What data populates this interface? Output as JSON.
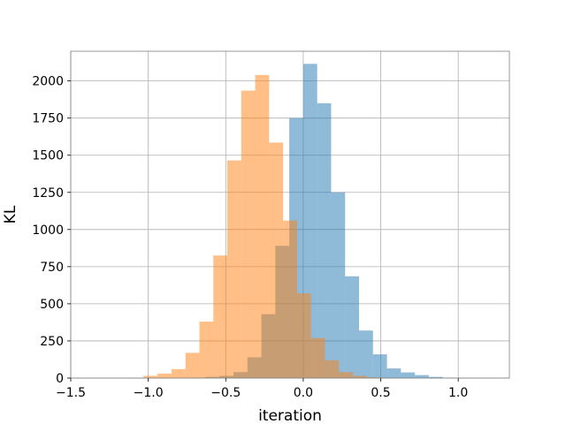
{
  "chart_data": {
    "type": "histogram",
    "xlabel": "iteration",
    "ylabel": "KL",
    "xlim": [
      -1.5,
      1.33
    ],
    "ylim": [
      0,
      2200
    ],
    "x_ticks": [
      -1.5,
      -1.0,
      -0.5,
      0.0,
      0.5,
      1.0
    ],
    "x_tick_labels": [
      "−1.5",
      "−1.0",
      "−0.5",
      "0.0",
      "0.5",
      "1.0"
    ],
    "y_ticks": [
      0,
      250,
      500,
      750,
      1000,
      1250,
      1500,
      1750,
      2000
    ],
    "y_tick_labels": [
      "0",
      "250",
      "500",
      "750",
      "1000",
      "1250",
      "1500",
      "1750",
      "2000"
    ],
    "grid": true,
    "series": [
      {
        "color": "#1f77b4",
        "opacity": 0.5,
        "bins": [
          {
            "x0": -0.72,
            "x1": -0.63,
            "value": 3
          },
          {
            "x0": -0.63,
            "x1": -0.54,
            "value": 8
          },
          {
            "x0": -0.54,
            "x1": -0.45,
            "value": 15
          },
          {
            "x0": -0.45,
            "x1": -0.36,
            "value": 40
          },
          {
            "x0": -0.36,
            "x1": -0.27,
            "value": 140
          },
          {
            "x0": -0.27,
            "x1": -0.18,
            "value": 430
          },
          {
            "x0": -0.18,
            "x1": -0.09,
            "value": 890
          },
          {
            "x0": -0.09,
            "x1": -0.0,
            "value": 1750
          },
          {
            "x0": -0.0,
            "x1": 0.09,
            "value": 2115
          },
          {
            "x0": 0.09,
            "x1": 0.18,
            "value": 1850
          },
          {
            "x0": 0.18,
            "x1": 0.27,
            "value": 1250
          },
          {
            "x0": 0.27,
            "x1": 0.36,
            "value": 685
          },
          {
            "x0": 0.36,
            "x1": 0.45,
            "value": 320
          },
          {
            "x0": 0.45,
            "x1": 0.54,
            "value": 160
          },
          {
            "x0": 0.54,
            "x1": 0.63,
            "value": 65
          },
          {
            "x0": 0.63,
            "x1": 0.72,
            "value": 38
          },
          {
            "x0": 0.72,
            "x1": 0.81,
            "value": 20
          },
          {
            "x0": 0.81,
            "x1": 0.9,
            "value": 8
          },
          {
            "x0": 0.9,
            "x1": 0.99,
            "value": 3
          }
        ]
      },
      {
        "color": "#ff7f0e",
        "opacity": 0.5,
        "bins": [
          {
            "x0": -1.12,
            "x1": -1.03,
            "value": 3
          },
          {
            "x0": -1.03,
            "x1": -0.94,
            "value": 15
          },
          {
            "x0": -0.94,
            "x1": -0.85,
            "value": 30
          },
          {
            "x0": -0.85,
            "x1": -0.76,
            "value": 60
          },
          {
            "x0": -0.76,
            "x1": -0.67,
            "value": 170
          },
          {
            "x0": -0.67,
            "x1": -0.58,
            "value": 380
          },
          {
            "x0": -0.58,
            "x1": -0.49,
            "value": 825
          },
          {
            "x0": -0.49,
            "x1": -0.4,
            "value": 1465
          },
          {
            "x0": -0.4,
            "x1": -0.31,
            "value": 1935
          },
          {
            "x0": -0.31,
            "x1": -0.22,
            "value": 2040
          },
          {
            "x0": -0.22,
            "x1": -0.13,
            "value": 1585
          },
          {
            "x0": -0.13,
            "x1": -0.04,
            "value": 1060
          },
          {
            "x0": -0.04,
            "x1": 0.05,
            "value": 570
          },
          {
            "x0": 0.05,
            "x1": 0.14,
            "value": 270
          },
          {
            "x0": 0.14,
            "x1": 0.23,
            "value": 120
          },
          {
            "x0": 0.23,
            "x1": 0.32,
            "value": 40
          },
          {
            "x0": 0.32,
            "x1": 0.41,
            "value": 15
          },
          {
            "x0": 0.41,
            "x1": 0.5,
            "value": 5
          }
        ]
      }
    ]
  }
}
